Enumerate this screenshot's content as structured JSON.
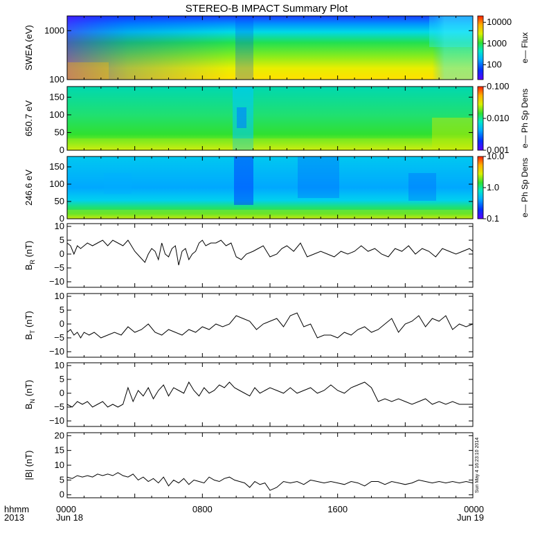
{
  "title": "STEREO-B IMPACT Summary Plot",
  "footer": {
    "time_label": "hhmm",
    "year_label": "2013",
    "stamp": "Sun May  4 16:23:10 2014"
  },
  "x_axis": {
    "ticks": [
      {
        "t": 0,
        "label": "0000",
        "sub": "Jun 18"
      },
      {
        "t": 8,
        "label": "0800",
        "sub": ""
      },
      {
        "t": 16,
        "label": "1600",
        "sub": ""
      },
      {
        "t": 24,
        "label": "0000",
        "sub": "Jun 19"
      }
    ]
  },
  "chart_data": [
    {
      "type": "heatmap",
      "ylabel": "SWEA (eV)",
      "ylim": [
        100,
        2000
      ],
      "log_y": true,
      "y_ticks": [
        {
          "v": 100,
          "label": "100"
        },
        {
          "v": 1000,
          "label": "1000"
        }
      ],
      "colorbar": {
        "label": "e— Flux",
        "log": true,
        "range": [
          20,
          20000
        ],
        "ticks": [
          {
            "v": 100,
            "label": "100"
          },
          {
            "v": 1000,
            "label": "1000"
          },
          {
            "v": 10000,
            "label": "10000"
          }
        ]
      }
    },
    {
      "type": "heatmap",
      "ylabel": "650.7 eV",
      "ylim": [
        0,
        180
      ],
      "y_ticks": [
        {
          "v": 0,
          "label": "0"
        },
        {
          "v": 50,
          "label": "50"
        },
        {
          "v": 100,
          "label": "100"
        },
        {
          "v": 150,
          "label": "150"
        }
      ],
      "colorbar": {
        "label": "e— Ph Sp Dens",
        "log": true,
        "range": [
          0.001,
          0.1
        ],
        "ticks": [
          {
            "v": 0.001,
            "label": "0.001"
          },
          {
            "v": 0.01,
            "label": "0.010"
          },
          {
            "v": 0.1,
            "label": "0.100"
          }
        ]
      }
    },
    {
      "type": "heatmap",
      "ylabel": "246.6 eV",
      "ylim": [
        0,
        180
      ],
      "y_ticks": [
        {
          "v": 0,
          "label": "0"
        },
        {
          "v": 50,
          "label": "50"
        },
        {
          "v": 100,
          "label": "100"
        },
        {
          "v": 150,
          "label": "150"
        }
      ],
      "colorbar": {
        "label": "e— Ph Sp Dens",
        "log": true,
        "range": [
          0.1,
          10
        ],
        "ticks": [
          {
            "v": 0.1,
            "label": "0.1"
          },
          {
            "v": 1,
            "label": "1.0"
          },
          {
            "v": 10,
            "label": "10.0"
          }
        ]
      }
    },
    {
      "type": "line",
      "ylabel": "B",
      "ylabel_sub": "R",
      "ylabel_unit": "(nT)",
      "ylim": [
        -12,
        11
      ],
      "y_ticks": [
        {
          "v": -10,
          "label": "−10"
        },
        {
          "v": -5,
          "label": "−5"
        },
        {
          "v": 0,
          "label": "0"
        },
        {
          "v": 5,
          "label": "5"
        },
        {
          "v": 10,
          "label": "10"
        }
      ],
      "x": [
        0,
        0.2,
        0.4,
        0.6,
        0.8,
        1.0,
        1.2,
        1.5,
        1.8,
        2.1,
        2.4,
        2.7,
        3.0,
        3.3,
        3.6,
        4.0,
        4.3,
        4.6,
        4.8,
        5.0,
        5.2,
        5.4,
        5.6,
        5.8,
        6.0,
        6.2,
        6.4,
        6.6,
        6.8,
        7.0,
        7.2,
        7.4,
        7.6,
        7.8,
        8.0,
        8.2,
        8.5,
        8.8,
        9.1,
        9.4,
        9.7,
        10.0,
        10.3,
        10.6,
        11.0,
        11.3,
        11.6,
        12.0,
        12.4,
        12.7,
        13.0,
        13.4,
        13.8,
        14.2,
        14.6,
        15.0,
        15.4,
        15.8,
        16.2,
        16.6,
        17.0,
        17.4,
        17.8,
        18.2,
        18.6,
        19.0,
        19.4,
        19.8,
        20.2,
        20.6,
        21.0,
        21.4,
        21.8,
        22.2,
        22.6,
        23.0,
        23.4,
        23.8,
        24.0
      ],
      "y": [
        4,
        3,
        0,
        3,
        2,
        3,
        4,
        3,
        4,
        5,
        3,
        5,
        4,
        3,
        5,
        1,
        -1,
        -3,
        0,
        2,
        1,
        -2,
        4,
        0,
        -1,
        2,
        3,
        -4,
        1,
        2,
        -2,
        0,
        1,
        4,
        5,
        3,
        4,
        4,
        5,
        3,
        4,
        -1,
        -2,
        0,
        1,
        2,
        3,
        -1,
        0,
        2,
        3,
        1,
        4,
        -1,
        0,
        1,
        0,
        -1,
        1,
        0,
        1,
        3,
        1,
        2,
        0,
        -1,
        2,
        1,
        3,
        0,
        2,
        1,
        -1,
        2,
        1,
        0,
        1,
        2,
        1
      ],
      "series": [
        {
          "name": ""
        }
      ]
    },
    {
      "type": "line",
      "ylabel": "B",
      "ylabel_sub": "T",
      "ylabel_unit": "(nT)",
      "ylim": [
        -12,
        11
      ],
      "y_ticks": [
        {
          "v": -10,
          "label": "−10"
        },
        {
          "v": -5,
          "label": "−5"
        },
        {
          "v": 0,
          "label": "0"
        },
        {
          "v": 5,
          "label": "5"
        },
        {
          "v": 10,
          "label": "10"
        }
      ],
      "x": [
        0,
        0.2,
        0.4,
        0.6,
        0.8,
        1.0,
        1.3,
        1.6,
        2.0,
        2.4,
        2.8,
        3.2,
        3.6,
        4.0,
        4.4,
        4.8,
        5.2,
        5.6,
        6.0,
        6.4,
        6.8,
        7.2,
        7.6,
        8.0,
        8.4,
        8.8,
        9.2,
        9.6,
        10.0,
        10.4,
        10.8,
        11.2,
        11.6,
        12.0,
        12.4,
        12.8,
        13.2,
        13.6,
        14.0,
        14.4,
        14.8,
        15.2,
        15.6,
        16.0,
        16.4,
        16.8,
        17.2,
        17.6,
        18.0,
        18.4,
        18.8,
        19.2,
        19.6,
        20.0,
        20.4,
        20.8,
        21.2,
        21.6,
        22.0,
        22.4,
        22.8,
        23.2,
        23.6,
        24.0
      ],
      "y": [
        -3,
        -2,
        -4,
        -3,
        -5,
        -3,
        -4,
        -3,
        -5,
        -4,
        -3,
        -4,
        -1,
        -3,
        -2,
        0,
        -3,
        -4,
        -2,
        -3,
        -4,
        -2,
        -3,
        -1,
        -2,
        0,
        -1,
        0,
        3,
        2,
        1,
        -2,
        0,
        1,
        2,
        -1,
        3,
        4,
        -1,
        0,
        -5,
        -4,
        -4,
        -5,
        -3,
        -4,
        -2,
        -1,
        -3,
        -2,
        0,
        2,
        -3,
        0,
        1,
        3,
        -1,
        2,
        1,
        3,
        -2,
        0,
        -1,
        0
      ],
      "series": [
        {
          "name": ""
        }
      ]
    },
    {
      "type": "line",
      "ylabel": "B",
      "ylabel_sub": "N",
      "ylabel_unit": "(nT)",
      "ylim": [
        -12,
        11
      ],
      "y_ticks": [
        {
          "v": -10,
          "label": "−10"
        },
        {
          "v": -5,
          "label": "−5"
        },
        {
          "v": 0,
          "label": "0"
        },
        {
          "v": 5,
          "label": "5"
        },
        {
          "v": 10,
          "label": "10"
        }
      ],
      "x": [
        0,
        0.3,
        0.6,
        0.9,
        1.2,
        1.5,
        1.8,
        2.1,
        2.4,
        2.7,
        3.0,
        3.3,
        3.6,
        3.9,
        4.2,
        4.5,
        4.8,
        5.1,
        5.4,
        5.7,
        6.0,
        6.3,
        6.6,
        6.9,
        7.2,
        7.5,
        7.8,
        8.1,
        8.4,
        8.7,
        9.0,
        9.3,
        9.6,
        9.9,
        10.2,
        10.5,
        10.8,
        11.1,
        11.4,
        11.7,
        12.0,
        12.4,
        12.8,
        13.2,
        13.6,
        14.0,
        14.4,
        14.8,
        15.2,
        15.6,
        16.0,
        16.4,
        16.8,
        17.2,
        17.6,
        18.0,
        18.4,
        18.8,
        19.2,
        19.6,
        20.0,
        20.4,
        20.8,
        21.2,
        21.6,
        22.0,
        22.4,
        22.8,
        23.2,
        23.6,
        24.0
      ],
      "y": [
        -4,
        -5,
        -3,
        -4,
        -3,
        -5,
        -4,
        -3,
        -5,
        -4,
        -5,
        -4,
        2,
        -3,
        1,
        -1,
        2,
        -2,
        1,
        3,
        -1,
        2,
        1,
        0,
        4,
        1,
        -1,
        2,
        0,
        1,
        3,
        2,
        4,
        2,
        1,
        0,
        -1,
        2,
        0,
        1,
        2,
        1,
        0,
        2,
        0,
        1,
        2,
        0,
        1,
        3,
        1,
        0,
        2,
        3,
        4,
        2,
        -3,
        -2,
        -3,
        -2,
        -3,
        -4,
        -3,
        -2,
        -4,
        -3,
        -4,
        -3,
        -4,
        -4,
        -4
      ],
      "series": [
        {
          "name": ""
        }
      ]
    },
    {
      "type": "line",
      "ylabel": "|B|",
      "ylabel_unit": "(nT)",
      "ylim": [
        -1,
        21
      ],
      "y_ticks": [
        {
          "v": 0,
          "label": "0"
        },
        {
          "v": 5,
          "label": "5"
        },
        {
          "v": 10,
          "label": "10"
        },
        {
          "v": 15,
          "label": "15"
        },
        {
          "v": 20,
          "label": "20"
        }
      ],
      "x": [
        0,
        0.3,
        0.6,
        0.9,
        1.2,
        1.5,
        1.8,
        2.1,
        2.4,
        2.7,
        3.0,
        3.3,
        3.6,
        3.9,
        4.2,
        4.5,
        4.8,
        5.1,
        5.4,
        5.7,
        6.0,
        6.3,
        6.6,
        6.9,
        7.2,
        7.5,
        7.8,
        8.1,
        8.4,
        8.7,
        9.0,
        9.3,
        9.6,
        9.9,
        10.2,
        10.5,
        10.8,
        11.1,
        11.4,
        11.7,
        12.0,
        12.4,
        12.8,
        13.2,
        13.6,
        14.0,
        14.4,
        14.8,
        15.2,
        15.6,
        16.0,
        16.4,
        16.8,
        17.2,
        17.6,
        18.0,
        18.4,
        18.8,
        19.2,
        19.6,
        20.0,
        20.4,
        20.8,
        21.2,
        21.6,
        22.0,
        22.4,
        22.8,
        23.2,
        23.6,
        24.0
      ],
      "y": [
        6,
        5.5,
        6.5,
        6,
        6.5,
        6,
        7,
        6.5,
        7,
        6.5,
        7.5,
        6.5,
        6,
        7,
        5,
        6,
        4.5,
        5.5,
        4,
        6,
        3,
        5,
        4,
        5.5,
        3.5,
        5,
        4.5,
        4,
        6,
        5,
        4.5,
        5.5,
        6,
        5,
        4.5,
        4,
        2.5,
        4.5,
        3.5,
        4,
        1.5,
        2.5,
        4.5,
        4,
        4.5,
        3.5,
        5,
        4.5,
        4,
        4.5,
        4,
        3.5,
        4.5,
        4,
        3,
        4.5,
        4.5,
        3.5,
        4.5,
        4,
        3.5,
        4,
        5,
        4.5,
        4,
        4.5,
        4,
        4.5,
        4,
        4.5,
        4
      ],
      "series": [
        {
          "name": ""
        }
      ]
    }
  ]
}
